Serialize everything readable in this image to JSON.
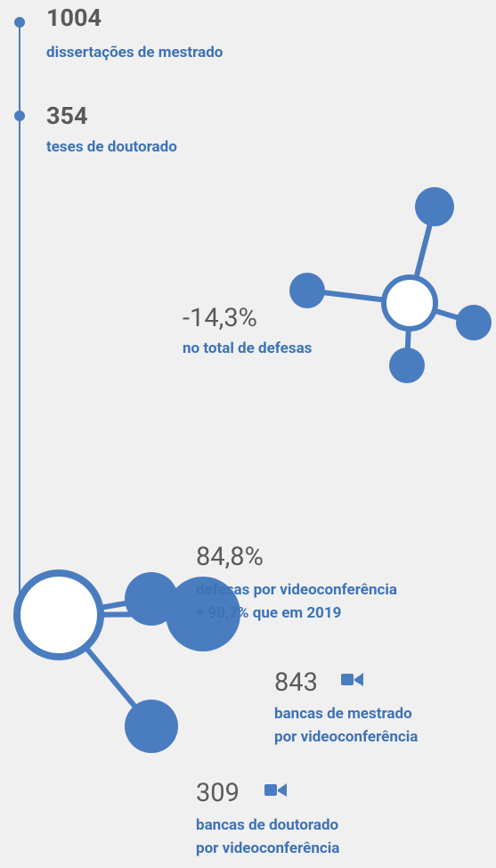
{
  "stats": [
    {
      "value": "1004",
      "lines": [
        "dissertações de mestrado"
      ]
    },
    {
      "value": "354",
      "lines": [
        "teses de doutorado"
      ]
    },
    {
      "value": "-14,3%",
      "lines": [
        "no total de defesas"
      ]
    },
    {
      "value": "84,8%",
      "lines": [
        "defesas por videoconferência",
        "+ 90,7% que em 2019"
      ]
    },
    {
      "value": "843",
      "lines": [
        "bancas de mestrado",
        "por videoconferência"
      ]
    },
    {
      "value": "309",
      "lines": [
        "bancas de doutorado",
        "por videoconferência"
      ]
    }
  ]
}
